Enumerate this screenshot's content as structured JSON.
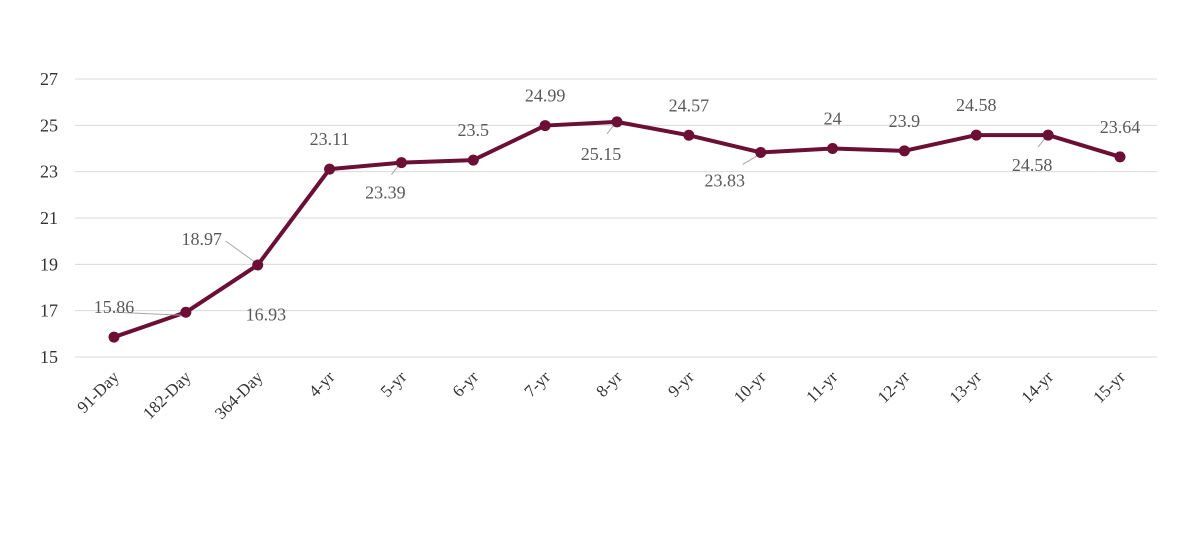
{
  "chart_data": {
    "type": "line",
    "title": "",
    "xlabel": "",
    "ylabel": "",
    "categories": [
      "91-Day",
      "182-Day",
      "364-Day",
      "4-yr",
      "5-yr",
      "6-yr",
      "7-yr",
      "8-yr",
      "9-yr",
      "10-yr",
      "11-yr",
      "12-yr",
      "13-yr",
      "14-yr",
      "15-yr"
    ],
    "series": [
      {
        "values": [
          15.86,
          16.93,
          18.97,
          23.11,
          23.39,
          23.5,
          24.99,
          25.15,
          24.57,
          23.83,
          24,
          23.9,
          24.58,
          24.58,
          23.64
        ],
        "labels": [
          "15.86",
          "16.93",
          "18.97",
          "23.11",
          "23.39",
          "23.5",
          "24.99",
          "25.15",
          "24.57",
          "23.83",
          "24",
          "23.9",
          "24.58",
          "24.58",
          "23.64"
        ],
        "color": "#6b0f35"
      }
    ],
    "ylim": [
      15,
      27
    ],
    "yticks": [
      "15",
      "17",
      "19",
      "21",
      "23",
      "25",
      "27"
    ],
    "grid": true,
    "legend": "none"
  }
}
